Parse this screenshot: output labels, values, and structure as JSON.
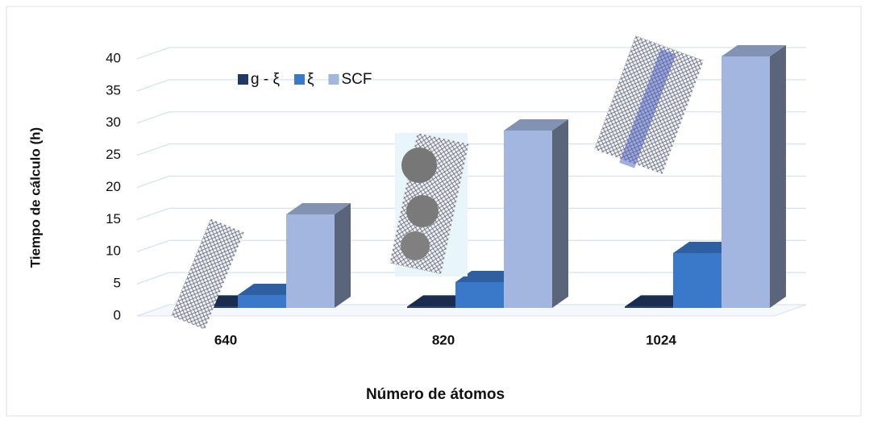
{
  "chart_data": {
    "type": "bar3d",
    "x_label": "Número de átomos",
    "y_label": "Tiempo de cálculo (h)",
    "categories": [
      "640",
      "820",
      "1024"
    ],
    "series": [
      {
        "name": "g - ξ",
        "color": "#1f3864",
        "values": [
          0.2,
          0.2,
          0.2
        ]
      },
      {
        "name": "ξ",
        "color": "#3a78c9",
        "values": [
          2,
          4,
          8.5
        ]
      },
      {
        "name": "SCF",
        "color": "#a3b6df",
        "values": [
          14.5,
          27.5,
          39
        ]
      }
    ],
    "ylim": [
      0,
      40
    ],
    "yticks": [
      0,
      5,
      10,
      15,
      20,
      25,
      30,
      35,
      40
    ],
    "grid": true,
    "legend": "top-left"
  }
}
